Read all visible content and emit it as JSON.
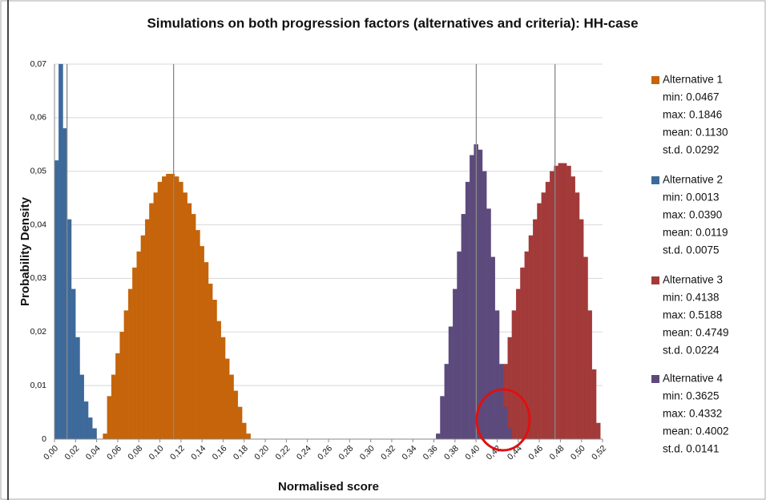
{
  "chart_data": {
    "type": "histogram",
    "title": "Simulations on both progression factors (alternatives and criteria): HH-case",
    "x_label": "Normalised score",
    "y_label": "Probability Density",
    "xlim": [
      0,
      0.52
    ],
    "ylim": [
      0,
      0.07
    ],
    "xticks": [
      {
        "value": 0,
        "label": "0,00"
      },
      {
        "value": 0.02,
        "label": "0,02"
      },
      {
        "value": 0.04,
        "label": "0,04"
      },
      {
        "value": 0.06,
        "label": "0,06"
      },
      {
        "value": 0.08,
        "label": "0,08"
      },
      {
        "value": 0.1,
        "label": "0,10"
      },
      {
        "value": 0.12,
        "label": "0,12"
      },
      {
        "value": 0.14,
        "label": "0,14"
      },
      {
        "value": 0.16,
        "label": "0,16"
      },
      {
        "value": 0.18,
        "label": "0,18"
      },
      {
        "value": 0.2,
        "label": "0,20"
      },
      {
        "value": 0.22,
        "label": "0,22"
      },
      {
        "value": 0.24,
        "label": "0,24"
      },
      {
        "value": 0.26,
        "label": "0,26"
      },
      {
        "value": 0.28,
        "label": "0,28"
      },
      {
        "value": 0.3,
        "label": "0,30"
      },
      {
        "value": 0.32,
        "label": "0,32"
      },
      {
        "value": 0.34,
        "label": "0,34"
      },
      {
        "value": 0.36,
        "label": "0,36"
      },
      {
        "value": 0.38,
        "label": "0,38"
      },
      {
        "value": 0.4,
        "label": "0,40"
      },
      {
        "value": 0.42,
        "label": "0,42"
      },
      {
        "value": 0.44,
        "label": "0,44"
      },
      {
        "value": 0.46,
        "label": "0,46"
      },
      {
        "value": 0.48,
        "label": "0,48"
      },
      {
        "value": 0.5,
        "label": "0,50"
      },
      {
        "value": 0.52,
        "label": "0,52"
      }
    ],
    "yticks": [
      0,
      {
        "value": 0.01,
        "label": "0,01"
      },
      {
        "value": 0.02,
        "label": "0,02"
      },
      {
        "value": 0.03,
        "label": "0,03"
      },
      {
        "value": 0.04,
        "label": "0,04"
      },
      {
        "value": 0.05,
        "label": "0,05"
      },
      {
        "value": 0.06,
        "label": "0,06"
      },
      {
        "value": 0.07,
        "label": "0,07"
      }
    ],
    "grid": true,
    "legend": "right",
    "series": [
      {
        "name": "Alternative 1",
        "color": "#c5640a",
        "mean": 0.113,
        "stats": [
          "min: 0.0467",
          "max: 0.1846",
          "mean: 0.1130",
          "st.d. 0.0292"
        ],
        "x": [
          0.048,
          0.052,
          0.056,
          0.06,
          0.064,
          0.068,
          0.072,
          0.076,
          0.08,
          0.084,
          0.088,
          0.092,
          0.096,
          0.1,
          0.104,
          0.108,
          0.112,
          0.116,
          0.12,
          0.124,
          0.128,
          0.132,
          0.136,
          0.14,
          0.144,
          0.148,
          0.152,
          0.156,
          0.16,
          0.164,
          0.168,
          0.172,
          0.176,
          0.18,
          0.184
        ],
        "values": [
          0.001,
          0.008,
          0.012,
          0.016,
          0.02,
          0.024,
          0.028,
          0.032,
          0.035,
          0.038,
          0.041,
          0.044,
          0.046,
          0.048,
          0.049,
          0.0495,
          0.0495,
          0.049,
          0.048,
          0.046,
          0.044,
          0.042,
          0.039,
          0.036,
          0.033,
          0.029,
          0.026,
          0.022,
          0.019,
          0.015,
          0.012,
          0.009,
          0.006,
          0.003,
          0.001
        ]
      },
      {
        "name": "Alternative 2",
        "color": "#3d6a9b",
        "mean": 0.0119,
        "stats": [
          "min: 0.0013",
          "max: 0.0390",
          "mean: 0.0119",
          "st.d. 0.0075"
        ],
        "x": [
          0.002,
          0.006,
          0.01,
          0.014,
          0.018,
          0.022,
          0.026,
          0.03,
          0.034,
          0.038
        ],
        "values": [
          0.052,
          0.07,
          0.058,
          0.041,
          0.028,
          0.019,
          0.012,
          0.007,
          0.004,
          0.002
        ]
      },
      {
        "name": "Alternative 3",
        "color": "#a33a3a",
        "mean": 0.4749,
        "stats": [
          "min: 0.4138",
          "max: 0.5188",
          "mean: 0.4749",
          "st.d. 0.0224"
        ],
        "x": [
          0.416,
          0.42,
          0.424,
          0.428,
          0.432,
          0.436,
          0.44,
          0.444,
          0.448,
          0.452,
          0.456,
          0.46,
          0.464,
          0.468,
          0.472,
          0.476,
          0.48,
          0.484,
          0.488,
          0.492,
          0.496,
          0.5,
          0.504,
          0.508,
          0.512,
          0.516
        ],
        "values": [
          0.001,
          0.004,
          0.009,
          0.014,
          0.019,
          0.024,
          0.028,
          0.032,
          0.035,
          0.038,
          0.041,
          0.044,
          0.046,
          0.048,
          0.05,
          0.051,
          0.0515,
          0.0515,
          0.051,
          0.049,
          0.046,
          0.041,
          0.034,
          0.024,
          0.013,
          0.003
        ]
      },
      {
        "name": "Alternative 4",
        "color": "#5d4a7c",
        "mean": 0.4002,
        "stats": [
          "min: 0.3625",
          "max: 0.4332",
          "mean: 0.4002",
          "st.d. 0.0141"
        ],
        "x": [
          0.364,
          0.368,
          0.372,
          0.376,
          0.38,
          0.384,
          0.388,
          0.392,
          0.396,
          0.4,
          0.404,
          0.408,
          0.412,
          0.416,
          0.42,
          0.424,
          0.428,
          0.432
        ],
        "values": [
          0.001,
          0.008,
          0.014,
          0.021,
          0.028,
          0.035,
          0.042,
          0.048,
          0.053,
          0.055,
          0.054,
          0.05,
          0.043,
          0.034,
          0.024,
          0.014,
          0.006,
          0.002
        ]
      }
    ]
  }
}
